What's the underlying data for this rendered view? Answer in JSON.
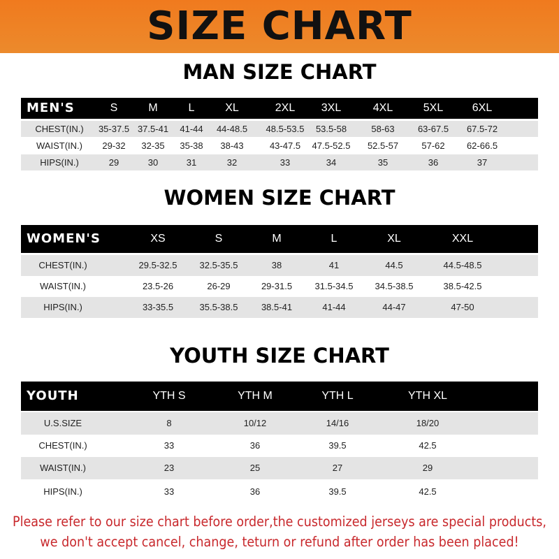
{
  "banner_title": "SIZE CHART",
  "men": {
    "title": "MAN SIZE CHART",
    "header": [
      "MEN'S",
      "S",
      "M",
      "L",
      "XL",
      "2XL",
      "3XL",
      "4XL",
      "5XL",
      "6XL"
    ],
    "rows": [
      [
        "CHEST(IN.)",
        "35-37.5",
        "37.5-41",
        "41-44",
        "44-48.5",
        "48.5-53.5",
        "53.5-58",
        "58-63",
        "63-67.5",
        "67.5-72"
      ],
      [
        "WAIST(IN.)",
        "29-32",
        "32-35",
        "35-38",
        "38-43",
        "43-47.5",
        "47.5-52.5",
        "52.5-57",
        "57-62",
        "62-66.5"
      ],
      [
        "HIPS(IN.)",
        "29",
        "30",
        "31",
        "32",
        "33",
        "34",
        "35",
        "36",
        "37"
      ]
    ]
  },
  "women": {
    "title": "WOMEN SIZE CHART",
    "header": [
      "WOMEN'S",
      "XS",
      "S",
      "M",
      "L",
      "XL",
      "XXL"
    ],
    "rows": [
      [
        "CHEST(IN.)",
        "29.5-32.5",
        "32.5-35.5",
        "38",
        "41",
        "44.5",
        "44.5-48.5"
      ],
      [
        "WAIST(IN.)",
        "23.5-26",
        "26-29",
        "29-31.5",
        "31.5-34.5",
        "34.5-38.5",
        "38.5-42.5"
      ],
      [
        "HIPS(IN.)",
        "33-35.5",
        "35.5-38.5",
        "38.5-41",
        "41-44",
        "44-47",
        "47-50"
      ]
    ]
  },
  "youth": {
    "title": "YOUTH SIZE CHART",
    "header": [
      "YOUTH",
      "YTH S",
      "YTH M",
      "YTH L",
      "YTH XL"
    ],
    "rows": [
      [
        "U.S.SIZE",
        "8",
        "10/12",
        "14/16",
        "18/20"
      ],
      [
        "CHEST(IN.)",
        "33",
        "36",
        "39.5",
        "42.5"
      ],
      [
        "WAIST(IN.)",
        "23",
        "25",
        "27",
        "29"
      ],
      [
        "HIPS(IN.)",
        "33",
        "36",
        "39.5",
        "42.5"
      ]
    ]
  },
  "footer": {
    "line1": "Please refer to our size chart before order,the customized jerseys are special products,",
    "line2": "we don't accept cancel, change, teturn or refund after order has been placed!"
  },
  "colors": {
    "banner": "#f07a1e",
    "header_row": "#000000",
    "stripe": "#e4e4e4",
    "notice": "#c8282c"
  }
}
